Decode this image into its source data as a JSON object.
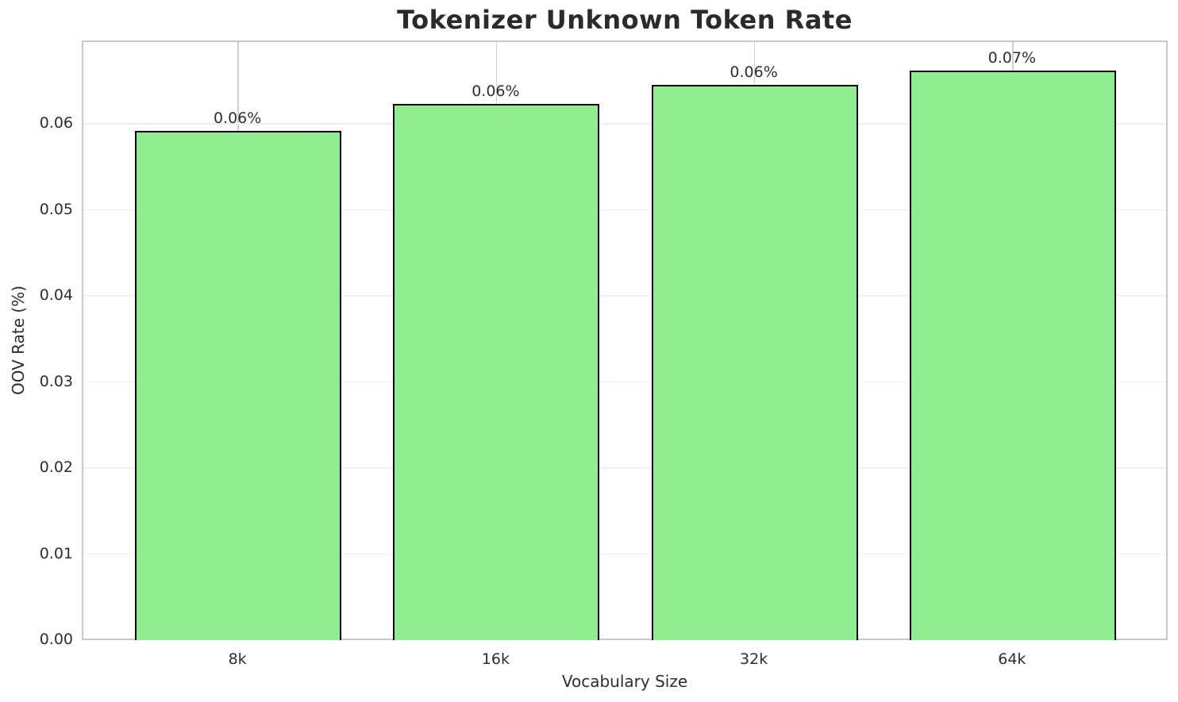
{
  "chart": {
    "title": "Tokenizer Unknown Token Rate",
    "xlabel": "Vocabulary Size",
    "ylabel": "OOV Rate (%)"
  },
  "chart_data": {
    "type": "bar",
    "title": "Tokenizer Unknown Token Rate",
    "xlabel": "Vocabulary Size",
    "ylabel": "OOV Rate (%)",
    "categories": [
      "8k",
      "16k",
      "32k",
      "64k"
    ],
    "values": [
      0.0592,
      0.0623,
      0.0645,
      0.0662
    ],
    "bar_labels": [
      "0.06%",
      "0.06%",
      "0.06%",
      "0.07%"
    ],
    "ylim": [
      0,
      0.0695
    ],
    "yticks": [
      0,
      0.01,
      0.02,
      0.03,
      0.04,
      0.05,
      0.06
    ],
    "ytick_labels": [
      "0.00",
      "0.01",
      "0.02",
      "0.03",
      "0.04",
      "0.05",
      "0.06"
    ],
    "xlim": [
      -0.6,
      3.6
    ],
    "bar_width_units": 0.8,
    "grid": true,
    "legend_position": "none",
    "colors": {
      "bar_fill": "#90ee90",
      "bar_edge": "#000000",
      "grid_horizontal": "#efefef",
      "grid_vertical": "#cfcfcf",
      "spine": "#c9c9c9",
      "text": "#2e2e2e"
    }
  }
}
